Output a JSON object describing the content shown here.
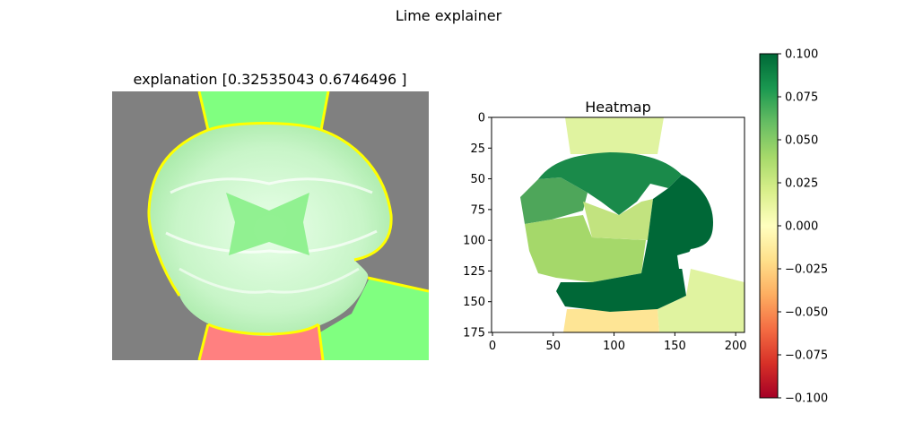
{
  "figure": {
    "suptitle": "Lime explainer"
  },
  "chart_data": [
    {
      "type": "image",
      "title": "explanation [0.32535043 0.6746496 ]",
      "axes_visible": false,
      "overlay_colors": {
        "positive_region": "#80ff80",
        "negative_region": "#ff8080",
        "boundary": "#ffff00",
        "background": "#808080"
      }
    },
    {
      "type": "heatmap",
      "title": "Heatmap",
      "xlabel": "",
      "ylabel": "",
      "xlim": [
        0,
        208
      ],
      "ylim": [
        175,
        0
      ],
      "xticks": [
        0,
        50,
        100,
        150,
        200
      ],
      "yticks": [
        0,
        25,
        50,
        75,
        100,
        125,
        150,
        175
      ],
      "colormap": "RdYlGn",
      "segments": [
        {
          "region": "top-center",
          "value": 0.02,
          "color": "#e0f3a0"
        },
        {
          "region": "brain-upper-ring",
          "value": 0.09,
          "color": "#1a8a4a"
        },
        {
          "region": "brain-right-ring",
          "value": 0.1,
          "color": "#006837"
        },
        {
          "region": "brain-left-outer",
          "value": 0.06,
          "color": "#4ea65a"
        },
        {
          "region": "brain-left-inner",
          "value": 0.04,
          "color": "#a5d86a"
        },
        {
          "region": "brain-center",
          "value": 0.035,
          "color": "#c2e37f"
        },
        {
          "region": "right-bottom",
          "value": 0.02,
          "color": "#e0f3a0"
        },
        {
          "region": "bottom-center",
          "value": -0.005,
          "color": "#fee595"
        }
      ]
    },
    {
      "type": "colorbar",
      "colormap": "RdYlGn",
      "vmin": -0.1,
      "vmax": 0.1,
      "ticks": [
        {
          "value": 0.1,
          "label": "0.100"
        },
        {
          "value": 0.075,
          "label": "0.075"
        },
        {
          "value": 0.05,
          "label": "0.050"
        },
        {
          "value": 0.025,
          "label": "0.025"
        },
        {
          "value": 0.0,
          "label": "0.000"
        },
        {
          "value": -0.025,
          "label": "−0.025"
        },
        {
          "value": -0.05,
          "label": "−0.050"
        },
        {
          "value": -0.075,
          "label": "−0.075"
        },
        {
          "value": -0.1,
          "label": "−0.100"
        }
      ]
    }
  ]
}
